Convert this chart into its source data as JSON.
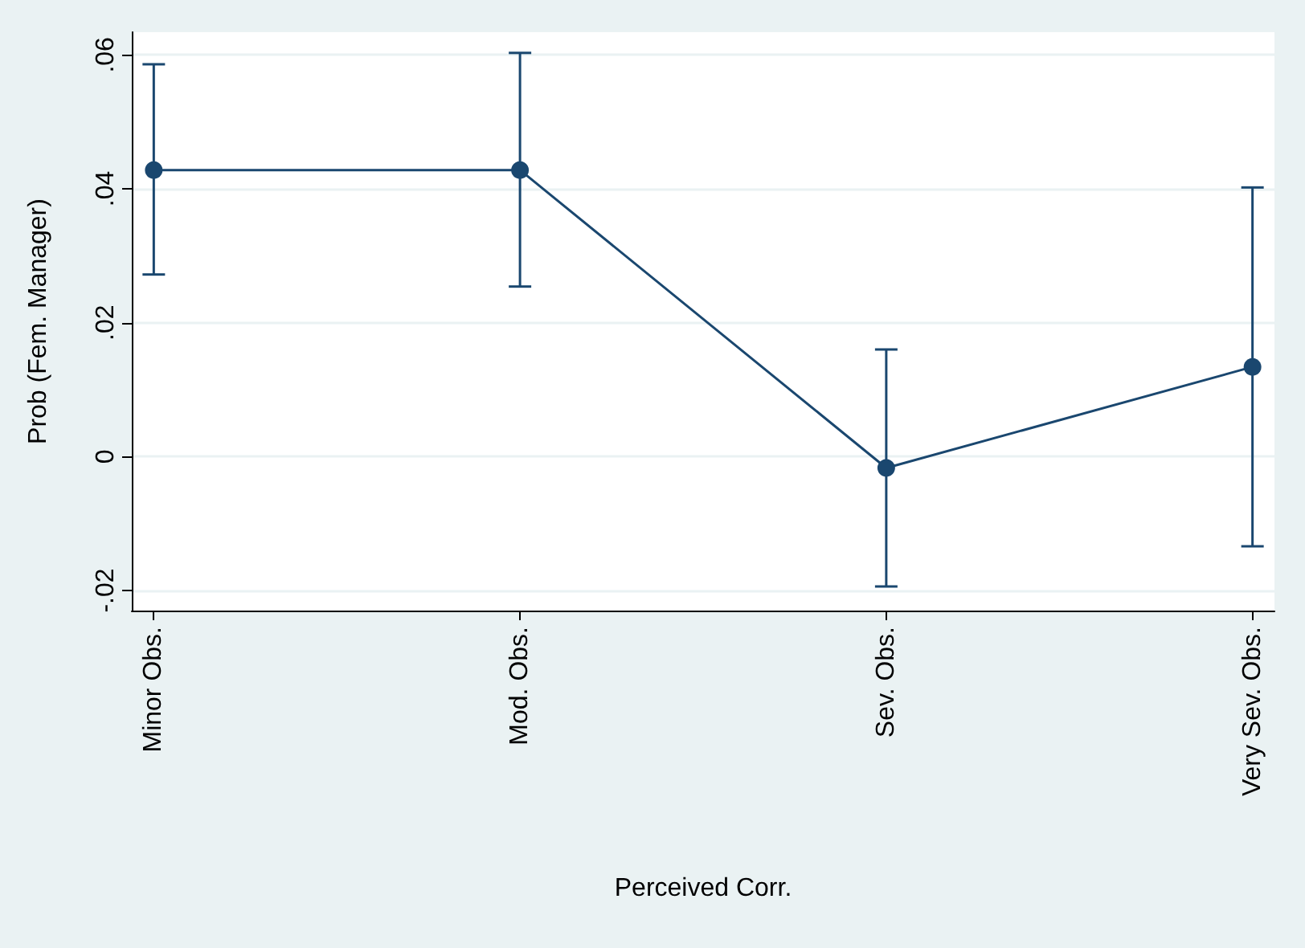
{
  "chart_data": {
    "type": "line",
    "xlabel": "Perceived Corr.",
    "ylabel": "Prob (Fem. Manager)",
    "categories": [
      "Minor Obs.",
      "Mod. Obs.",
      "Sev. Obs.",
      "Very Sev. Obs."
    ],
    "series": [
      {
        "color": "#1a476f",
        "values": [
          0.0428,
          0.0428,
          -0.0017,
          0.0134
        ],
        "errors": [
          [
            0.0272,
            0.0586
          ],
          [
            0.0254,
            0.0603
          ],
          [
            -0.0194,
            0.016
          ],
          [
            -0.0134,
            0.0402
          ]
        ]
      }
    ],
    "ylim": [
      -0.023,
      0.0634
    ],
    "yticks": [
      {
        "value": -0.02,
        "label": "-.02"
      },
      0,
      {
        "value": 0.02,
        "label": ".02"
      },
      {
        "value": 0.04,
        "label": ".04"
      },
      {
        "value": 0.06,
        "label": ".06"
      }
    ],
    "grid": "y",
    "marker": "circle",
    "line_style": "solid"
  }
}
